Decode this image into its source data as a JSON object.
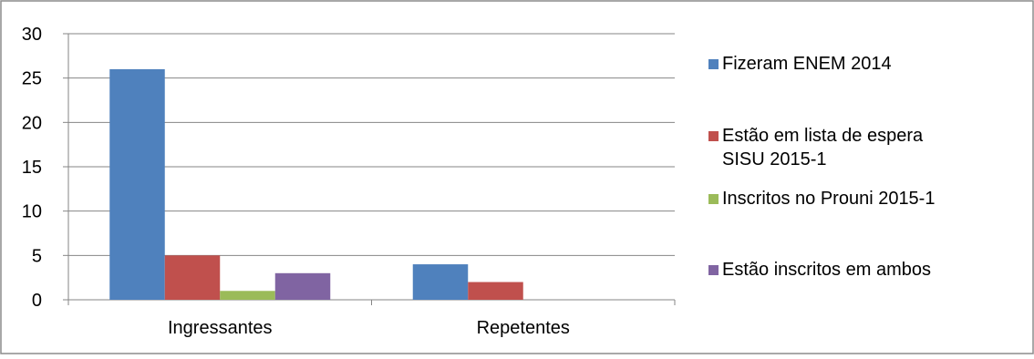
{
  "chart_data": {
    "type": "bar",
    "categories": [
      "Ingressantes",
      "Repetentes"
    ],
    "series": [
      {
        "name": "Fizeram ENEM 2014",
        "values": [
          26,
          4
        ],
        "color": "#4F81BD"
      },
      {
        "name": "Estão em lista de espera SISU 2015-1",
        "values": [
          5,
          2
        ],
        "color": "#C0504D"
      },
      {
        "name": "Inscritos no Prouni 2015-1",
        "values": [
          1,
          0
        ],
        "color": "#9BBB59"
      },
      {
        "name": "Estão inscritos em ambos",
        "values": [
          3,
          0
        ],
        "color": "#8064A2"
      }
    ],
    "ylim": [
      0,
      30
    ],
    "yticks": [
      "0",
      "5",
      "10",
      "15",
      "20",
      "25",
      "30"
    ],
    "grid": true,
    "legend": "right"
  }
}
